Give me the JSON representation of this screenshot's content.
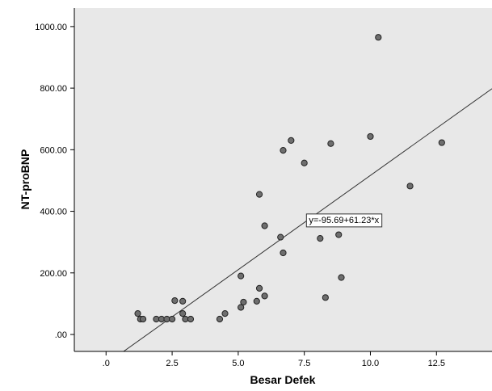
{
  "chart_data": {
    "type": "scatter",
    "title": "",
    "xlabel": "Besar Defek",
    "ylabel": "NT-proBNP",
    "xlim": [
      -1.2,
      14.6
    ],
    "ylim": [
      -55,
      1060
    ],
    "x_ticks": [
      0,
      2.5,
      5,
      7.5,
      10,
      12.5
    ],
    "x_tick_labels": [
      ".0",
      "2.5",
      "5.0",
      "7.5",
      "10.0",
      "12.5"
    ],
    "y_ticks": [
      0,
      200,
      400,
      600,
      800,
      1000
    ],
    "y_tick_labels": [
      ".00",
      "200.00",
      "400.00",
      "600.00",
      "800.00",
      "1000.00"
    ],
    "grid": false,
    "plot_background": "#e8e8e8",
    "point_color": "#6e6e6e",
    "line_color": "#333333",
    "fit_line": {
      "intercept": -95.69,
      "slope": 61.23,
      "label": "y=-95.69+61.23*x",
      "label_at": [
        9.0,
        373
      ]
    },
    "points": [
      {
        "x": 1.2,
        "y": 68
      },
      {
        "x": 1.3,
        "y": 50
      },
      {
        "x": 1.4,
        "y": 50
      },
      {
        "x": 1.9,
        "y": 50
      },
      {
        "x": 2.1,
        "y": 50
      },
      {
        "x": 2.3,
        "y": 50
      },
      {
        "x": 2.5,
        "y": 50
      },
      {
        "x": 2.6,
        "y": 110
      },
      {
        "x": 2.9,
        "y": 108
      },
      {
        "x": 2.9,
        "y": 68
      },
      {
        "x": 3.0,
        "y": 50
      },
      {
        "x": 3.2,
        "y": 50
      },
      {
        "x": 4.3,
        "y": 50
      },
      {
        "x": 4.5,
        "y": 68
      },
      {
        "x": 5.1,
        "y": 88
      },
      {
        "x": 5.1,
        "y": 190
      },
      {
        "x": 5.2,
        "y": 105
      },
      {
        "x": 5.7,
        "y": 108
      },
      {
        "x": 5.8,
        "y": 150
      },
      {
        "x": 5.8,
        "y": 455
      },
      {
        "x": 6.0,
        "y": 125
      },
      {
        "x": 6.0,
        "y": 353
      },
      {
        "x": 6.6,
        "y": 316
      },
      {
        "x": 6.7,
        "y": 265
      },
      {
        "x": 6.7,
        "y": 598
      },
      {
        "x": 7.0,
        "y": 630
      },
      {
        "x": 7.5,
        "y": 557
      },
      {
        "x": 8.1,
        "y": 312
      },
      {
        "x": 8.3,
        "y": 120
      },
      {
        "x": 8.5,
        "y": 620
      },
      {
        "x": 8.8,
        "y": 324
      },
      {
        "x": 8.9,
        "y": 185
      },
      {
        "x": 10.0,
        "y": 643
      },
      {
        "x": 10.3,
        "y": 965
      },
      {
        "x": 11.5,
        "y": 482
      },
      {
        "x": 12.7,
        "y": 623
      }
    ]
  }
}
